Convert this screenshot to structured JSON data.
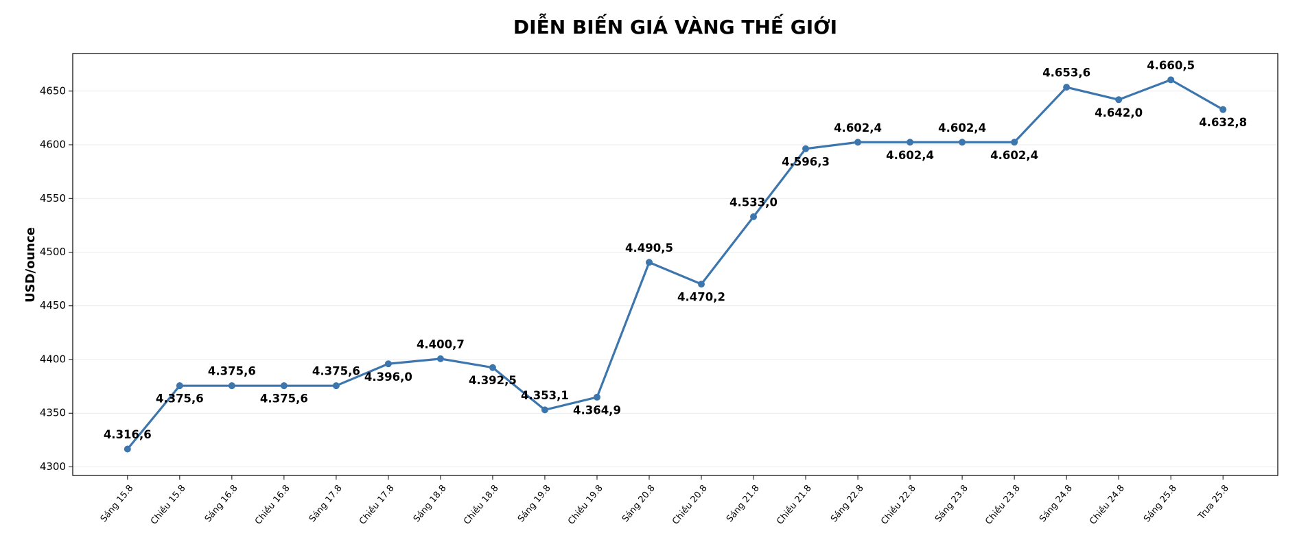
{
  "chart_data": {
    "type": "line",
    "title": "DIỄN BIẾN GIÁ VÀNG THẾ GIỚI",
    "ylabel": "USD/ounce",
    "categories": [
      "Sáng 15.8",
      "Chiều 15.8",
      "Sáng 16.8",
      "Chiều 16.8",
      "Sáng 17.8",
      "Chiều 17.8",
      "Sáng 18.8",
      "Chiều 18.8",
      "Sáng 19.8",
      "Chiều 19.8",
      "Sáng 20.8",
      "Chiều 20.8",
      "Sáng 21.8",
      "Chiều 21.8",
      "Sáng 22.8",
      "Chiều 22.8",
      "Sáng 23.8",
      "Chiều 23.8",
      "Sáng 24.8",
      "Chiều 24.8",
      "Sáng 25.8",
      "Trưa 25.8"
    ],
    "series": [
      {
        "color": "#3c76ad",
        "values": [
          4316.6,
          4375.6,
          4375.6,
          4375.6,
          4375.6,
          4396.0,
          4400.7,
          4392.5,
          4353.1,
          4364.9,
          4490.5,
          4470.2,
          4533.0,
          4596.3,
          4602.4,
          4602.4,
          4602.4,
          4602.4,
          4653.6,
          4642.0,
          4660.5,
          4632.8
        ],
        "value_labels": [
          "4.316,6",
          "4.375,6",
          "4.375,6",
          "4.375,6",
          "4.375,6",
          "4.396,0",
          "4.400,7",
          "4.392,5",
          "4.353,1",
          "4.364,9",
          "4.490,5",
          "4.470,2",
          "4.533,0",
          "4.596,3",
          "4.602,4",
          "4.602,4",
          "4.602,4",
          "4.602,4",
          "4.653,6",
          "4.642,0",
          "4.660,5",
          "4.632,8"
        ]
      }
    ],
    "ylim": [
      4292,
      4685
    ],
    "yticks": [
      4300,
      4350,
      4400,
      4450,
      4500,
      4550,
      4600,
      4650
    ],
    "grid": true
  }
}
